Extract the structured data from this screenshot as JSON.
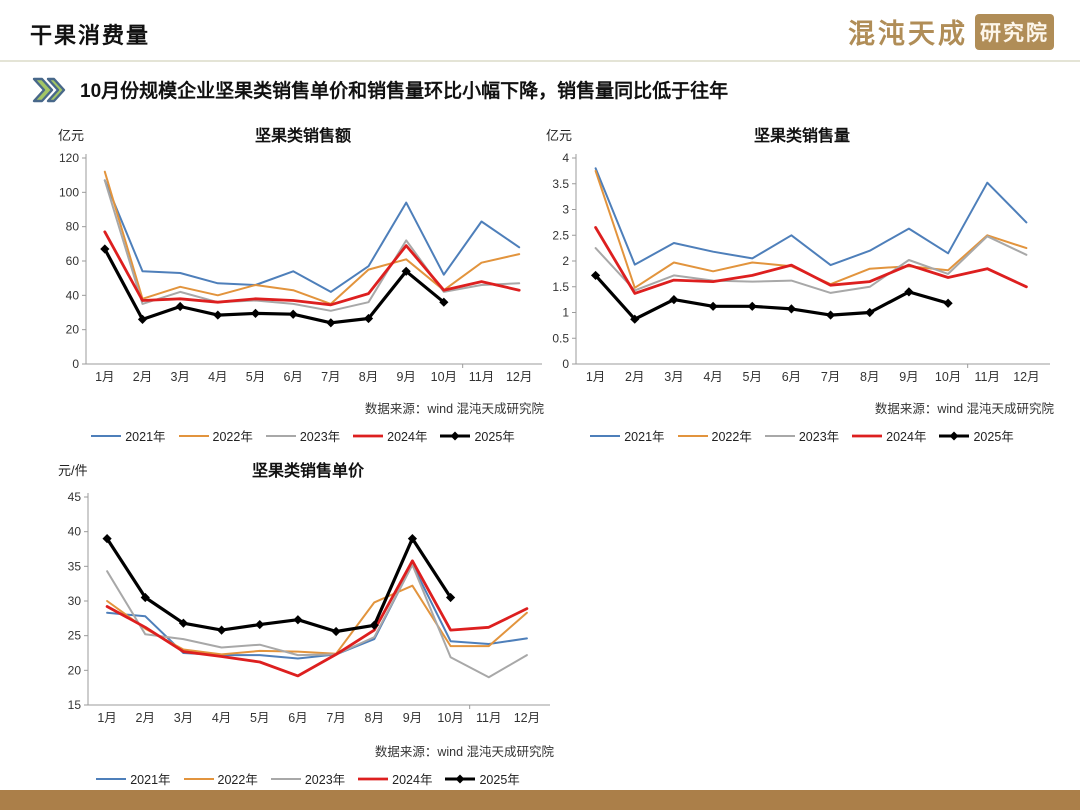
{
  "page": {
    "header_title": "干果消费量",
    "logo_text": "混沌天成",
    "logo_badge": "研究院",
    "subtitle": "10月份规模企业坚果类销售单价和销售量环比小幅下降，销售量同比低于往年",
    "source_note": "数据来源：wind  混沌天成研究院",
    "footer_color": "#ab7f49",
    "logo_color": "#b08d57",
    "chevron_outer_color": "#48688a",
    "chevron_inner_color": "#a2c566"
  },
  "months": [
    "1月",
    "2月",
    "3月",
    "4月",
    "5月",
    "6月",
    "7月",
    "8月",
    "9月",
    "10月",
    "11月",
    "12月"
  ],
  "chart_data": [
    {
      "type": "line",
      "title": "坚果类销售额",
      "unit": "亿元",
      "ylim": [
        0,
        120
      ],
      "ystep": 20,
      "grid": false,
      "legend_position": "bottom",
      "categories": [
        "1月",
        "2月",
        "3月",
        "4月",
        "5月",
        "6月",
        "7月",
        "8月",
        "9月",
        "10月",
        "11月",
        "12月"
      ],
      "series": [
        {
          "name": "2021年",
          "color": "#4e7fba",
          "width": 2,
          "marker": "none",
          "values": [
            107,
            54,
            53,
            47,
            46,
            54,
            42,
            57,
            94,
            52,
            83,
            68
          ]
        },
        {
          "name": "2022年",
          "color": "#e2943d",
          "width": 2,
          "marker": "none",
          "values": [
            112,
            38,
            45,
            40,
            46,
            43,
            35,
            55,
            61,
            43,
            59,
            64
          ]
        },
        {
          "name": "2023年",
          "color": "#a8a8a8",
          "width": 2,
          "marker": "none",
          "values": [
            107,
            35,
            42,
            36,
            37,
            35,
            31,
            36,
            72,
            42,
            46,
            47
          ]
        },
        {
          "name": "2024年",
          "color": "#dd1f1f",
          "width": 2.8,
          "marker": "none",
          "values": [
            77,
            37,
            38,
            36,
            38,
            37,
            34.5,
            41,
            69,
            43,
            48,
            43
          ]
        },
        {
          "name": "2025年",
          "color": "#000000",
          "width": 3.2,
          "marker": "diamond",
          "values": [
            67,
            26,
            33.5,
            28.5,
            29.5,
            29,
            24,
            26.5,
            54,
            36
          ]
        }
      ]
    },
    {
      "type": "line",
      "title": "坚果类销售量",
      "unit": "亿元",
      "ylim": [
        0,
        4
      ],
      "ystep": 0.5,
      "grid": false,
      "legend_position": "bottom",
      "categories": [
        "1月",
        "2月",
        "3月",
        "4月",
        "5月",
        "6月",
        "7月",
        "8月",
        "9月",
        "10月",
        "11月",
        "12月"
      ],
      "series": [
        {
          "name": "2021年",
          "color": "#4e7fba",
          "width": 2,
          "marker": "none",
          "values": [
            3.8,
            1.93,
            2.35,
            2.18,
            2.05,
            2.5,
            1.92,
            2.2,
            2.63,
            2.15,
            3.52,
            2.75
          ]
        },
        {
          "name": "2022年",
          "color": "#e2943d",
          "width": 2,
          "marker": "none",
          "values": [
            3.75,
            1.48,
            1.97,
            1.8,
            1.97,
            1.9,
            1.55,
            1.85,
            1.9,
            1.82,
            2.5,
            2.25
          ]
        },
        {
          "name": "2023年",
          "color": "#a8a8a8",
          "width": 2,
          "marker": "none",
          "values": [
            2.25,
            1.43,
            1.72,
            1.62,
            1.6,
            1.62,
            1.38,
            1.5,
            2.02,
            1.75,
            2.48,
            2.12
          ]
        },
        {
          "name": "2024年",
          "color": "#dd1f1f",
          "width": 2.8,
          "marker": "none",
          "values": [
            2.65,
            1.37,
            1.63,
            1.6,
            1.72,
            1.92,
            1.53,
            1.6,
            1.92,
            1.68,
            1.85,
            1.5
          ]
        },
        {
          "name": "2025年",
          "color": "#000000",
          "width": 3.2,
          "marker": "diamond",
          "values": [
            1.72,
            0.87,
            1.25,
            1.12,
            1.12,
            1.07,
            0.95,
            1.0,
            1.4,
            1.18
          ]
        }
      ]
    },
    {
      "type": "line",
      "title": "坚果类销售单价",
      "unit": "元/件",
      "ylim": [
        15,
        45
      ],
      "ystep": 5,
      "grid": false,
      "legend_position": "bottom",
      "categories": [
        "1月",
        "2月",
        "3月",
        "4月",
        "5月",
        "6月",
        "7月",
        "8月",
        "9月",
        "10月",
        "11月",
        "12月"
      ],
      "series": [
        {
          "name": "2021年",
          "color": "#4e7fba",
          "width": 2,
          "marker": "none",
          "values": [
            28.3,
            27.8,
            22.5,
            22.2,
            22.2,
            21.7,
            22.3,
            24.5,
            35.3,
            24.2,
            23.8,
            24.6
          ]
        },
        {
          "name": "2022年",
          "color": "#e2943d",
          "width": 2,
          "marker": "none",
          "values": [
            30,
            26,
            23,
            22.3,
            22.8,
            22.7,
            22.4,
            29.8,
            32.2,
            23.5,
            23.5,
            28.3
          ]
        },
        {
          "name": "2023年",
          "color": "#a8a8a8",
          "width": 2,
          "marker": "none",
          "values": [
            34.3,
            25.2,
            24.5,
            23.3,
            23.7,
            22.2,
            22.3,
            24.8,
            35.2,
            21.9,
            19,
            22.2
          ]
        },
        {
          "name": "2024年",
          "color": "#dd1f1f",
          "width": 2.8,
          "marker": "none",
          "values": [
            29.2,
            26.2,
            22.7,
            22,
            21.2,
            19.2,
            22.3,
            25.8,
            35.8,
            25.8,
            26.2,
            28.9
          ]
        },
        {
          "name": "2025年",
          "color": "#000000",
          "width": 3.2,
          "marker": "diamond",
          "values": [
            39,
            30.5,
            26.8,
            25.8,
            26.6,
            27.3,
            25.6,
            26.5,
            39,
            30.5
          ]
        }
      ]
    }
  ]
}
